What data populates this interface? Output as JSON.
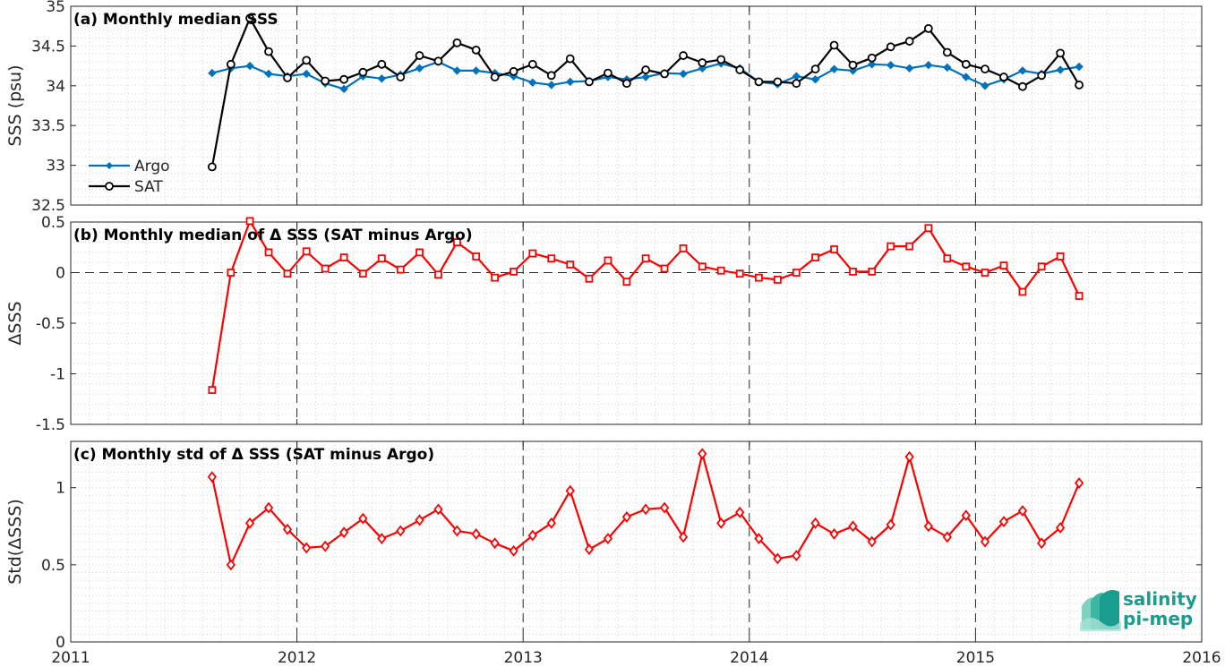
{
  "chart_data": [
    {
      "type": "line",
      "panel": "a",
      "title": "(a) Monthly median SSS",
      "ylabel": "SSS (psu)",
      "xlim": [
        2011,
        2016
      ],
      "ylim": [
        32.5,
        35
      ],
      "xticks": [
        2011,
        2012,
        2013,
        2014,
        2015,
        2016
      ],
      "yticks": [
        32.5,
        33,
        33.5,
        34,
        34.5,
        35
      ],
      "ytick_labels": [
        "32.5",
        "33",
        "33.5",
        "34",
        "34.5",
        "35"
      ],
      "grid": "minor dotted",
      "legend_position": "lower-left",
      "series": [
        {
          "name": "Argo",
          "color": "#0072bd",
          "marker": "filled-diamond",
          "x": [
            2011.625,
            2011.708,
            2011.792,
            2011.875,
            2011.958,
            2012.042,
            2012.125,
            2012.208,
            2012.292,
            2012.375,
            2012.458,
            2012.542,
            2012.625,
            2012.708,
            2012.792,
            2012.875,
            2012.958,
            2013.042,
            2013.125,
            2013.208,
            2013.292,
            2013.375,
            2013.458,
            2013.542,
            2013.625,
            2013.708,
            2013.792,
            2013.875,
            2013.958,
            2014.042,
            2014.125,
            2014.208,
            2014.292,
            2014.375,
            2014.458,
            2014.542,
            2014.625,
            2014.708,
            2014.792,
            2014.875,
            2014.958,
            2015.042,
            2015.125,
            2015.208,
            2015.292,
            2015.375,
            2015.458
          ],
          "values": [
            34.16,
            34.22,
            34.25,
            34.15,
            34.12,
            34.15,
            34.03,
            33.96,
            34.12,
            34.09,
            34.14,
            34.22,
            34.3,
            34.19,
            34.19,
            34.16,
            34.12,
            34.04,
            34.01,
            34.05,
            34.06,
            34.11,
            34.08,
            34.11,
            34.16,
            34.15,
            34.22,
            34.28,
            34.22,
            34.05,
            34.02,
            34.12,
            34.08,
            34.21,
            34.19,
            34.27,
            34.26,
            34.22,
            34.26,
            34.23,
            34.11,
            34.0,
            34.08,
            34.19,
            34.15,
            34.2,
            34.24
          ]
        },
        {
          "name": "SAT",
          "color": "#000000",
          "marker": "open-circle",
          "x": [
            2011.625,
            2011.708,
            2011.792,
            2011.875,
            2011.958,
            2012.042,
            2012.125,
            2012.208,
            2012.292,
            2012.375,
            2012.458,
            2012.542,
            2012.625,
            2012.708,
            2012.792,
            2012.875,
            2012.958,
            2013.042,
            2013.125,
            2013.208,
            2013.292,
            2013.375,
            2013.458,
            2013.542,
            2013.625,
            2013.708,
            2013.792,
            2013.875,
            2013.958,
            2014.042,
            2014.125,
            2014.208,
            2014.292,
            2014.375,
            2014.458,
            2014.542,
            2014.625,
            2014.708,
            2014.792,
            2014.875,
            2014.958,
            2015.042,
            2015.125,
            2015.208,
            2015.292,
            2015.375,
            2015.458
          ],
          "values": [
            32.98,
            34.27,
            34.85,
            34.43,
            34.1,
            34.32,
            34.06,
            34.08,
            34.17,
            34.27,
            34.11,
            34.38,
            34.31,
            34.54,
            34.45,
            34.11,
            34.18,
            34.27,
            34.13,
            34.34,
            34.05,
            34.16,
            34.03,
            34.2,
            34.15,
            34.38,
            34.29,
            34.33,
            34.2,
            34.05,
            34.05,
            34.03,
            34.21,
            34.51,
            34.26,
            34.35,
            34.49,
            34.56,
            34.72,
            34.42,
            34.27,
            34.21,
            34.11,
            33.99,
            34.13,
            34.41,
            34.01
          ]
        }
      ]
    },
    {
      "type": "line",
      "panel": "b",
      "title": "(b) Monthly median of Δ SSS (SAT minus Argo)",
      "ylabel": "ΔSSS",
      "xlim": [
        2011,
        2016
      ],
      "ylim": [
        -1.5,
        0.5
      ],
      "xticks": [
        2011,
        2012,
        2013,
        2014,
        2015,
        2016
      ],
      "yticks": [
        -1.5,
        -1,
        -0.5,
        0,
        0.5
      ],
      "ytick_labels": [
        "-1.5",
        "-1",
        "-0.5",
        "0",
        "0.5"
      ],
      "grid": "minor dotted",
      "zero_line": "dashed",
      "series": [
        {
          "color": "#ff0000",
          "marker": "open-square",
          "x": [
            2011.625,
            2011.708,
            2011.792,
            2011.875,
            2011.958,
            2012.042,
            2012.125,
            2012.208,
            2012.292,
            2012.375,
            2012.458,
            2012.542,
            2012.625,
            2012.708,
            2012.792,
            2012.875,
            2012.958,
            2013.042,
            2013.125,
            2013.208,
            2013.292,
            2013.375,
            2013.458,
            2013.542,
            2013.625,
            2013.708,
            2013.792,
            2013.875,
            2013.958,
            2014.042,
            2014.125,
            2014.208,
            2014.292,
            2014.375,
            2014.458,
            2014.542,
            2014.625,
            2014.708,
            2014.792,
            2014.875,
            2014.958,
            2015.042,
            2015.125,
            2015.208,
            2015.292,
            2015.375,
            2015.458
          ],
          "values": [
            -1.16,
            0.0,
            0.51,
            0.2,
            -0.01,
            0.21,
            0.04,
            0.15,
            -0.01,
            0.14,
            0.03,
            0.2,
            -0.02,
            0.3,
            0.16,
            -0.05,
            0.01,
            0.19,
            0.14,
            0.08,
            -0.06,
            0.12,
            -0.09,
            0.14,
            0.04,
            0.24,
            0.06,
            0.02,
            -0.01,
            -0.05,
            -0.07,
            0.0,
            0.15,
            0.23,
            0.01,
            0.01,
            0.26,
            0.26,
            0.44,
            0.14,
            0.06,
            0.0,
            0.07,
            -0.19,
            0.06,
            0.16,
            -0.23
          ]
        }
      ]
    },
    {
      "type": "line",
      "panel": "c",
      "title": "(c) Monthly std of Δ SSS (SAT minus Argo)",
      "ylabel": "Std(ΔSSS)",
      "xlim": [
        2011,
        2016
      ],
      "ylim": [
        0,
        1.3
      ],
      "xticks": [
        2011,
        2012,
        2013,
        2014,
        2015,
        2016
      ],
      "xtick_labels": [
        "2011",
        "2012",
        "2013",
        "2014",
        "2015",
        "2016"
      ],
      "yticks": [
        0,
        0.5,
        1
      ],
      "ytick_labels": [
        "0",
        "0.5",
        "1"
      ],
      "grid": "minor dotted",
      "series": [
        {
          "color": "#ff0000",
          "marker": "open-diamond",
          "x": [
            2011.625,
            2011.708,
            2011.792,
            2011.875,
            2011.958,
            2012.042,
            2012.125,
            2012.208,
            2012.292,
            2012.375,
            2012.458,
            2012.542,
            2012.625,
            2012.708,
            2012.792,
            2012.875,
            2012.958,
            2013.042,
            2013.125,
            2013.208,
            2013.292,
            2013.375,
            2013.458,
            2013.542,
            2013.625,
            2013.708,
            2013.792,
            2013.875,
            2013.958,
            2014.042,
            2014.125,
            2014.208,
            2014.292,
            2014.375,
            2014.458,
            2014.542,
            2014.625,
            2014.708,
            2014.792,
            2014.875,
            2014.958,
            2015.042,
            2015.125,
            2015.208,
            2015.292,
            2015.375,
            2015.458
          ],
          "values": [
            1.07,
            0.5,
            0.77,
            0.87,
            0.73,
            0.61,
            0.62,
            0.71,
            0.8,
            0.67,
            0.72,
            0.79,
            0.86,
            0.72,
            0.7,
            0.64,
            0.59,
            0.69,
            0.77,
            0.98,
            0.6,
            0.67,
            0.81,
            0.86,
            0.87,
            0.68,
            1.22,
            0.77,
            0.84,
            0.67,
            0.54,
            0.56,
            0.77,
            0.7,
            0.75,
            0.65,
            0.76,
            1.2,
            0.75,
            0.68,
            0.82,
            0.65,
            0.78,
            0.85,
            0.64,
            0.74,
            1.03
          ]
        }
      ]
    }
  ],
  "logo": {
    "line1": "salinity",
    "line2": "pi-mep",
    "color": "#1a9c8e"
  }
}
